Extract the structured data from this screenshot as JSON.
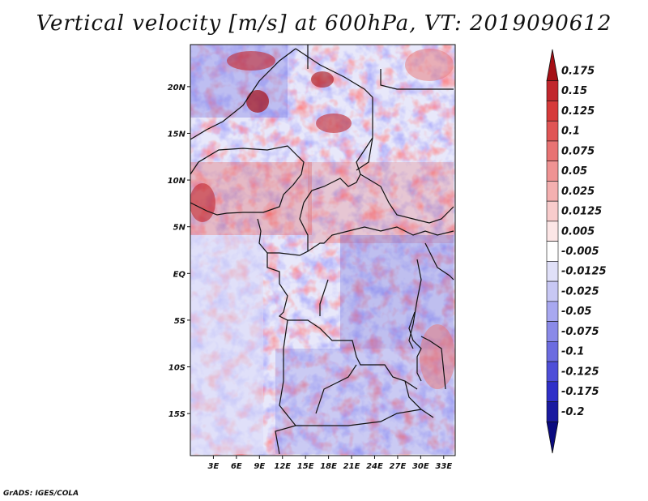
{
  "title": "Vertical velocity [m/s] at 600hPa, VT: 2019090612",
  "credit": "GrADS: IGES/COLA",
  "map": {
    "lon_range": [
      0,
      34.5
    ],
    "lat_range": [
      -19.5,
      24.5
    ],
    "x_ticks": [
      "3E",
      "6E",
      "9E",
      "12E",
      "15E",
      "18E",
      "21E",
      "24E",
      "27E",
      "30E",
      "33E"
    ],
    "x_tick_values": [
      3,
      6,
      9,
      12,
      15,
      18,
      21,
      24,
      27,
      30,
      33
    ],
    "y_ticks": [
      "20N",
      "15N",
      "10N",
      "5N",
      "EQ",
      "5S",
      "10S",
      "15S"
    ],
    "y_tick_values": [
      20,
      15,
      10,
      5,
      0,
      -5,
      -10,
      -15
    ]
  },
  "colorbar": {
    "labels": [
      "0.175",
      "0.15",
      "0.125",
      "0.1",
      "0.075",
      "0.05",
      "0.025",
      "0.0125",
      "0.005",
      "-0.005",
      "-0.0125",
      "-0.025",
      "-0.05",
      "-0.075",
      "-0.1",
      "-0.125",
      "-0.175",
      "-0.2"
    ],
    "colors": [
      "#a50f15",
      "#c1272d",
      "#d63a3a",
      "#e05555",
      "#e87373",
      "#ef9393",
      "#f4b0b0",
      "#f8cccc",
      "#fce6e6",
      "#ffffff",
      "#e0e0f8",
      "#c8c8f4",
      "#a8a8f0",
      "#8a8ae8",
      "#6c6ce0",
      "#4e4ed8",
      "#3030c8",
      "#1a1aa0",
      "#0a0a80"
    ]
  }
}
